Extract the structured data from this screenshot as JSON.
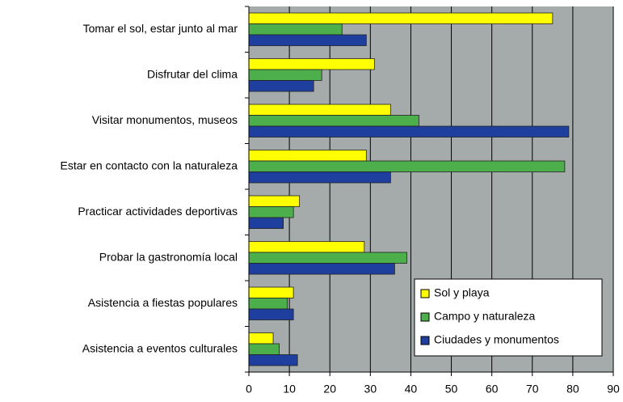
{
  "chart_data": {
    "type": "hbar",
    "categories": [
      "Tomar el sol, estar junto al mar",
      "Disfrutar del clima",
      "Visitar monumentos, museos",
      "Estar en contacto con la naturaleza",
      "Practicar actividades deportivas",
      "Probar la gastronomía local",
      "Asistencia a fiestas populares",
      "Asistencia a eventos culturales"
    ],
    "series": [
      {
        "name": "Sol y playa",
        "color": "#ffff00",
        "values": [
          75,
          31,
          35,
          29,
          12.5,
          28.5,
          11,
          6
        ]
      },
      {
        "name": "Campo y naturaleza",
        "color": "#4caf4c",
        "values": [
          23,
          18,
          42,
          78,
          11,
          39,
          9.5,
          7.5
        ]
      },
      {
        "name": "Ciudades y monumentos",
        "color": "#1f3f9f",
        "values": [
          29,
          16,
          79,
          35,
          8.5,
          36,
          11,
          12
        ]
      }
    ],
    "xlim": [
      0,
      90
    ],
    "xticks": [
      0,
      10,
      20,
      30,
      40,
      50,
      60,
      70,
      80,
      90
    ],
    "grid": true,
    "legend": "lower-right"
  }
}
